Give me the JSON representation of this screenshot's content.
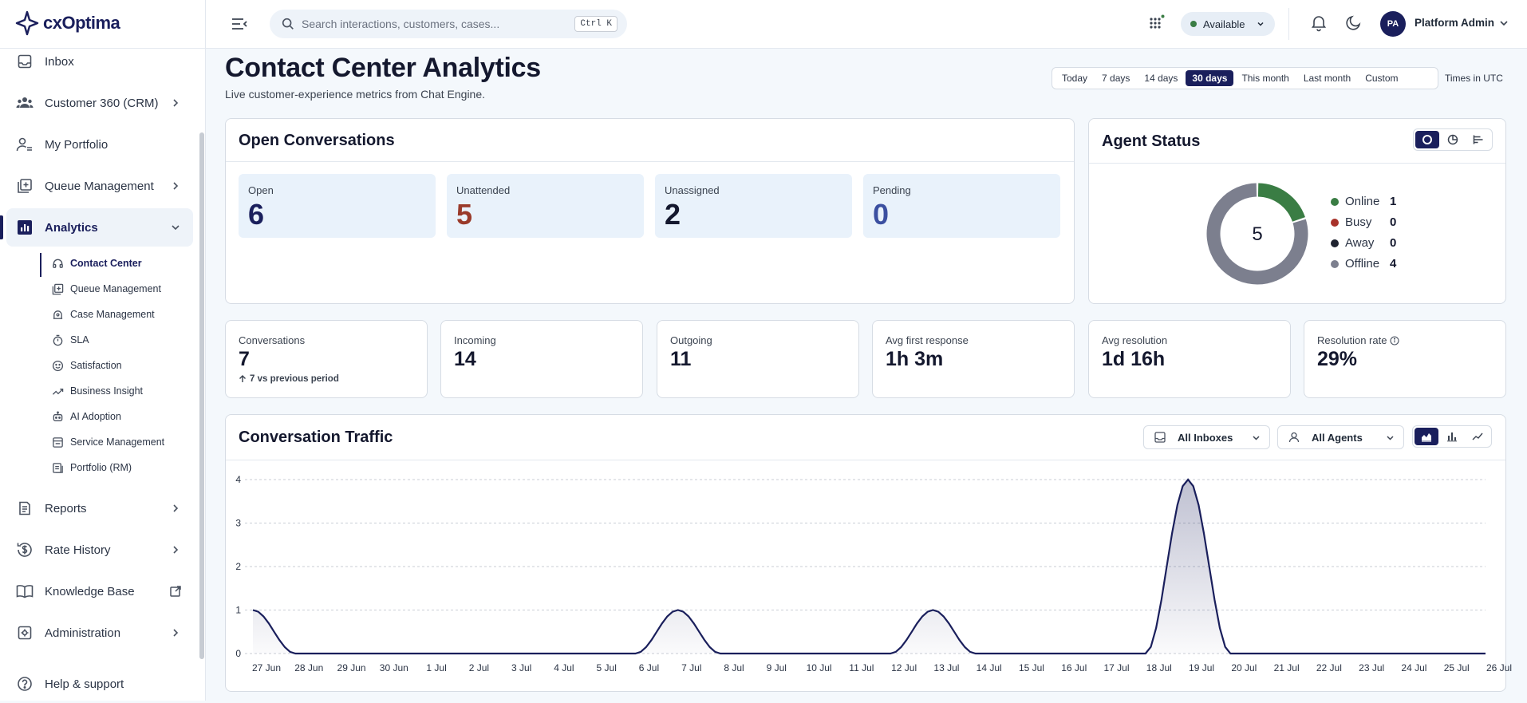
{
  "app": {
    "name": "cxOptima"
  },
  "sidebar": {
    "items": [
      {
        "label": "Inbox",
        "icon": "inbox-icon"
      },
      {
        "label": "Customer 360 (CRM)",
        "icon": "users-icon"
      },
      {
        "label": "My Portfolio",
        "icon": "portfolio-icon"
      },
      {
        "label": "Queue Management",
        "icon": "queue-icon"
      },
      {
        "label": "Analytics",
        "icon": "analytics-icon"
      },
      {
        "label": "Reports",
        "icon": "reports-icon"
      },
      {
        "label": "Rate History",
        "icon": "rate-icon"
      },
      {
        "label": "Knowledge Base",
        "icon": "book-icon"
      },
      {
        "label": "Administration",
        "icon": "admin-icon"
      },
      {
        "label": "Help & support",
        "icon": "help-icon"
      }
    ],
    "analytics_sub": [
      {
        "label": "Contact Center"
      },
      {
        "label": "Queue Management"
      },
      {
        "label": "Case Management"
      },
      {
        "label": "SLA"
      },
      {
        "label": "Satisfaction"
      },
      {
        "label": "Business Insight"
      },
      {
        "label": "AI Adoption"
      },
      {
        "label": "Service Management"
      },
      {
        "label": "Portfolio (RM)"
      }
    ]
  },
  "topbar": {
    "search_placeholder": "Search interactions, customers, cases...",
    "shortcut": "Ctrl K",
    "status": "Available",
    "status_color": "#3a7d44",
    "user_initials": "PA",
    "user_name": "Platform Admin"
  },
  "page": {
    "title": "Contact Center Analytics",
    "subtitle": "Live customer-experience metrics from Chat Engine.",
    "ranges": [
      "Today",
      "7 days",
      "14 days",
      "30 days",
      "This month",
      "Last month",
      "Custom"
    ],
    "selected_range": "30 days",
    "timezone": "Times in UTC"
  },
  "open_conversations": {
    "title": "Open Conversations",
    "tiles": [
      {
        "label": "Open",
        "value": "6",
        "color": "#1a1f5c"
      },
      {
        "label": "Unattended",
        "value": "5",
        "color": "#9a3a2a"
      },
      {
        "label": "Unassigned",
        "value": "2",
        "color": "#14182e"
      },
      {
        "label": "Pending",
        "value": "0",
        "color": "#3b4fa0"
      }
    ]
  },
  "agent_status": {
    "title": "Agent Status",
    "total": "5",
    "legend": [
      {
        "label": "Online",
        "value": "1",
        "color": "#3a7d44"
      },
      {
        "label": "Busy",
        "value": "0",
        "color": "#a8322a"
      },
      {
        "label": "Away",
        "value": "0",
        "color": "#1f2330"
      },
      {
        "label": "Offline",
        "value": "4",
        "color": "#7c7f8e"
      }
    ]
  },
  "stats": [
    {
      "label": "Conversations",
      "value": "7",
      "delta": "7 vs previous period"
    },
    {
      "label": "Incoming",
      "value": "14"
    },
    {
      "label": "Outgoing",
      "value": "11"
    },
    {
      "label": "Avg first response",
      "value": "1h 3m"
    },
    {
      "label": "Avg resolution",
      "value": "1d 16h"
    },
    {
      "label": "Resolution rate",
      "value": "29%"
    }
  ],
  "traffic": {
    "title": "Conversation Traffic",
    "inbox_filter": "All Inboxes",
    "agent_filter": "All Agents"
  },
  "chart_data": {
    "type": "area",
    "x": [
      "27 Jun",
      "28 Jun",
      "29 Jun",
      "30 Jun",
      "1 Jul",
      "2 Jul",
      "3 Jul",
      "4 Jul",
      "5 Jul",
      "6 Jul",
      "7 Jul",
      "8 Jul",
      "9 Jul",
      "10 Jul",
      "11 Jul",
      "12 Jul",
      "13 Jul",
      "14 Jul",
      "15 Jul",
      "16 Jul",
      "17 Jul",
      "18 Jul",
      "19 Jul",
      "20 Jul",
      "21 Jul",
      "22 Jul",
      "23 Jul",
      "24 Jul",
      "25 Jul",
      "26 Jul"
    ],
    "values": [
      1,
      0,
      0,
      0,
      0,
      0,
      0,
      0,
      0,
      0,
      1,
      0,
      0,
      0,
      0,
      0,
      1,
      0,
      0,
      0,
      0,
      0,
      4,
      0,
      0,
      0,
      0,
      0,
      0,
      0
    ],
    "ylim": [
      0,
      4
    ],
    "yticks": [
      0,
      1,
      2,
      3,
      4
    ],
    "grid": true,
    "line_color": "#1a1f5c"
  }
}
